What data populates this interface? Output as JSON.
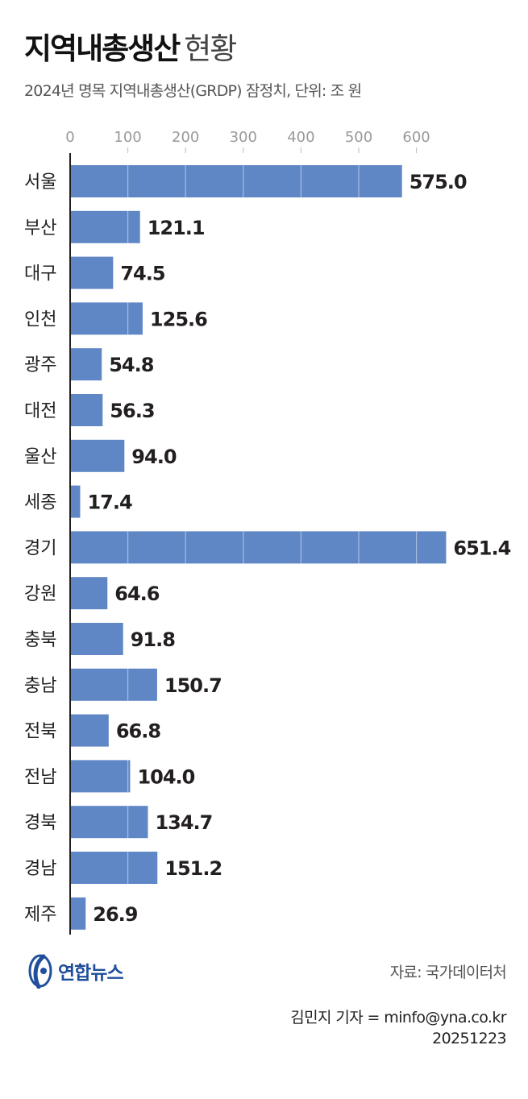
{
  "header": {
    "title_bold": "지역내총생산",
    "title_light": "현황",
    "subtitle": "2024년 명목 지역내총생산(GRDP) 잠정치, 단위: 조 원"
  },
  "chart_data": {
    "type": "bar",
    "orientation": "horizontal",
    "categories": [
      "서울",
      "부산",
      "대구",
      "인천",
      "광주",
      "대전",
      "울산",
      "세종",
      "경기",
      "강원",
      "충북",
      "충남",
      "전북",
      "전남",
      "경북",
      "경남",
      "제주"
    ],
    "values": [
      575.0,
      121.1,
      74.5,
      125.6,
      54.8,
      56.3,
      94.0,
      17.4,
      651.4,
      64.6,
      91.8,
      150.7,
      66.8,
      104.0,
      134.7,
      151.2,
      26.9
    ],
    "value_labels": [
      "575.0",
      "121.1",
      "74.5",
      "125.6",
      "54.8",
      "56.3",
      "94.0",
      "17.4",
      "651.4",
      "64.6",
      "91.8",
      "150.7",
      "66.8",
      "104.0",
      "134.7",
      "151.2",
      "26.9"
    ],
    "x_ticks": [
      "0",
      "100",
      "200",
      "300",
      "400",
      "500",
      "600"
    ],
    "xlim": [
      0,
      600
    ],
    "grid": true,
    "legend": "none",
    "bar_color": "#5f87c6"
  },
  "footer": {
    "logo_text": "연합뉴스",
    "source": "자료: 국가데이터처",
    "byline": "김민지 기자 = minfo@yna.co.kr",
    "date": "20251223"
  }
}
